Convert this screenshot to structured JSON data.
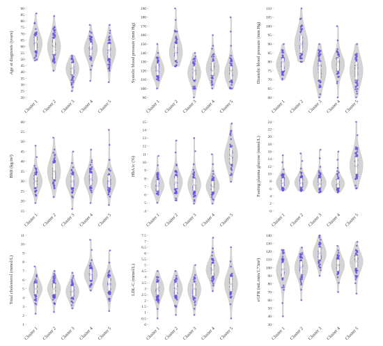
{
  "chart_data": [
    {
      "type": "violin",
      "ylabel": "Age at diagnosis (years)",
      "ylim": [
        20,
        90
      ],
      "yticks": [
        20,
        25,
        30,
        35,
        40,
        45,
        50,
        55,
        60,
        65,
        70,
        75,
        80,
        85,
        90
      ],
      "categories": [
        "Cluster 1",
        "Cluster 2",
        "Cluster 3",
        "Cluster 4",
        "Cluster 5"
      ],
      "series": [
        {
          "median": 63,
          "q1": 57,
          "q3": 68,
          "min": 49,
          "max": 86
        },
        {
          "median": 60,
          "q1": 54,
          "q3": 66,
          "min": 41,
          "max": 84
        },
        {
          "median": 43,
          "q1": 38,
          "q3": 47,
          "min": 25,
          "max": 53
        },
        {
          "median": 58,
          "q1": 53,
          "q3": 63,
          "min": 33,
          "max": 77
        },
        {
          "median": 57,
          "q1": 51,
          "q3": 62,
          "min": 32,
          "max": 77
        }
      ]
    },
    {
      "type": "violin",
      "ylabel": "Systolic blood pressure (mm Hg)",
      "ylim": [
        90,
        190
      ],
      "yticks": [
        90,
        100,
        110,
        120,
        130,
        140,
        150,
        160,
        170,
        180,
        190
      ],
      "categories": [
        "Cluster 1",
        "Cluster 2",
        "Cluster 3",
        "Cluster 4",
        "Cluster 5"
      ],
      "series": [
        {
          "median": 120,
          "q1": 115,
          "q3": 128,
          "min": 100,
          "max": 150
        },
        {
          "median": 140,
          "q1": 132,
          "q3": 150,
          "min": 125,
          "max": 190
        },
        {
          "median": 120,
          "q1": 110,
          "q3": 125,
          "min": 90,
          "max": 140
        },
        {
          "median": 120,
          "q1": 115,
          "q3": 130,
          "min": 100,
          "max": 160
        },
        {
          "median": 120,
          "q1": 110,
          "q3": 125,
          "min": 100,
          "max": 180
        }
      ]
    },
    {
      "type": "violin",
      "ylabel": "Diastolic blood pressure (mm Hg)",
      "ylim": [
        60,
        110
      ],
      "yticks": [
        60,
        65,
        70,
        75,
        80,
        85,
        90,
        95,
        100,
        105,
        110
      ],
      "categories": [
        "Cluster 1",
        "Cluster 2",
        "Cluster 3",
        "Cluster 4",
        "Cluster 5"
      ],
      "series": [
        {
          "median": 80,
          "q1": 75,
          "q3": 82,
          "min": 70,
          "max": 90
        },
        {
          "median": 90,
          "q1": 85,
          "q3": 95,
          "min": 80,
          "max": 110
        },
        {
          "median": 78,
          "q1": 70,
          "q3": 80,
          "min": 60,
          "max": 90
        },
        {
          "median": 80,
          "q1": 75,
          "q3": 82,
          "min": 60,
          "max": 100
        },
        {
          "median": 78,
          "q1": 70,
          "q3": 80,
          "min": 60,
          "max": 90
        }
      ]
    },
    {
      "type": "violin",
      "ylabel": "BMI (kg/m²)",
      "ylim": [
        15,
        60
      ],
      "yticks": [
        15,
        20,
        25,
        30,
        35,
        40,
        45,
        50,
        55,
        60
      ],
      "categories": [
        "Cluster 1",
        "Cluster 2",
        "Cluster 3",
        "Cluster 4",
        "Cluster 5"
      ],
      "series": [
        {
          "median": 30,
          "q1": 27,
          "q3": 33,
          "min": 19,
          "max": 48
        },
        {
          "median": 35,
          "q1": 31,
          "q3": 39,
          "min": 22,
          "max": 52
        },
        {
          "median": 30,
          "q1": 27,
          "q3": 33,
          "min": 16,
          "max": 45
        },
        {
          "median": 31,
          "q1": 28,
          "q3": 34,
          "min": 19,
          "max": 46
        },
        {
          "median": 30,
          "q1": 27,
          "q3": 33,
          "min": 18,
          "max": 56
        }
      ]
    },
    {
      "type": "violin",
      "ylabel": "HbA1c (%)",
      "ylim": [
        4,
        15
      ],
      "yticks": [
        4,
        5,
        6,
        7,
        8,
        9,
        10,
        11,
        12,
        13,
        14,
        15
      ],
      "categories": [
        "Cluster 1",
        "Cluster 2",
        "Cluster 3",
        "Cluster 4",
        "Cluster 5"
      ],
      "series": [
        {
          "median": 7.1,
          "q1": 6.5,
          "q3": 7.8,
          "min": 5.0,
          "max": 10.8
        },
        {
          "median": 7.5,
          "q1": 6.8,
          "q3": 8.3,
          "min": 5.3,
          "max": 12.7
        },
        {
          "median": 7.2,
          "q1": 6.5,
          "q3": 8.0,
          "min": 4.9,
          "max": 13.0
        },
        {
          "median": 7.0,
          "q1": 6.4,
          "q3": 7.7,
          "min": 4.9,
          "max": 11.0
        },
        {
          "median": 10.8,
          "q1": 9.8,
          "q3": 11.8,
          "min": 7.6,
          "max": 14.8
        }
      ]
    },
    {
      "type": "violin",
      "ylabel": "Fasting plasma glucose (mmol/L)",
      "ylim": [
        0,
        24
      ],
      "yticks": [
        0,
        2,
        4,
        6,
        8,
        10,
        12,
        14,
        16,
        18,
        20,
        22,
        24
      ],
      "categories": [
        "Cluster 1",
        "Cluster 2",
        "Cluster 3",
        "Cluster 4",
        "Cluster 5"
      ],
      "series": [
        {
          "median": 7.5,
          "q1": 6.5,
          "q3": 8.8,
          "min": 5.5,
          "max": 15.0
        },
        {
          "median": 7.5,
          "q1": 6.5,
          "q3": 8.8,
          "min": 5.3,
          "max": 15.5
        },
        {
          "median": 7.3,
          "q1": 6.3,
          "q3": 8.8,
          "min": 5.0,
          "max": 16.5
        },
        {
          "median": 7.3,
          "q1": 6.3,
          "q3": 8.5,
          "min": 5.0,
          "max": 16.0
        },
        {
          "median": 12.0,
          "q1": 10.0,
          "q3": 14.5,
          "min": 6.0,
          "max": 24.0
        }
      ]
    },
    {
      "type": "violin",
      "ylabel": "Total cholesterol (mmol/L)",
      "ylim": [
        1,
        11
      ],
      "yticks": [
        1,
        2,
        3,
        4,
        5,
        6,
        7,
        8,
        9,
        10,
        11
      ],
      "categories": [
        "Cluster 1",
        "Cluster 2",
        "Cluster 3",
        "Cluster 4",
        "Cluster 5"
      ],
      "series": [
        {
          "median": 5.0,
          "q1": 4.4,
          "q3": 5.6,
          "min": 2.2,
          "max": 7.5
        },
        {
          "median": 5.0,
          "q1": 4.4,
          "q3": 5.6,
          "min": 2.4,
          "max": 7.0
        },
        {
          "median": 4.7,
          "q1": 4.1,
          "q3": 5.3,
          "min": 2.8,
          "max": 6.8
        },
        {
          "median": 6.6,
          "q1": 6.0,
          "q3": 7.2,
          "min": 4.8,
          "max": 10.5
        },
        {
          "median": 5.5,
          "q1": 4.8,
          "q3": 6.2,
          "min": 2.5,
          "max": 9.3
        }
      ]
    },
    {
      "type": "violin",
      "ylabel": "LDL-C (mmol/L)",
      "ylim": [
        0,
        7.5
      ],
      "yticks": [
        0,
        0.5,
        1,
        1.5,
        2,
        2.5,
        3,
        3.5,
        4,
        4.5,
        5,
        5.5,
        6,
        6.5,
        7,
        7.5
      ],
      "categories": [
        "Cluster 1",
        "Cluster 2",
        "Cluster 3",
        "Cluster 4",
        "Cluster 5"
      ],
      "series": [
        {
          "median": 3.0,
          "q1": 2.5,
          "q3": 3.5,
          "min": 0.5,
          "max": 4.5
        },
        {
          "median": 3.0,
          "q1": 2.5,
          "q3": 3.5,
          "min": 0.8,
          "max": 4.5
        },
        {
          "median": 3.0,
          "q1": 2.4,
          "q3": 3.5,
          "min": 0.8,
          "max": 5.0
        },
        {
          "median": 4.6,
          "q1": 4.1,
          "q3": 5.1,
          "min": 2.8,
          "max": 7.3
        },
        {
          "median": 3.4,
          "q1": 2.8,
          "q3": 4.0,
          "min": 0.5,
          "max": 6.5
        }
      ]
    },
    {
      "type": "violin",
      "ylabel": "eGFR (mL/min/1.73m²)",
      "ylim": [
        30,
        140
      ],
      "yticks": [
        30,
        40,
        50,
        60,
        70,
        80,
        90,
        100,
        110,
        120,
        130,
        140
      ],
      "categories": [
        "Cluster 1",
        "Cluster 2",
        "Cluster 3",
        "Cluster 4",
        "Cluster 5"
      ],
      "series": [
        {
          "median": 98,
          "q1": 88,
          "q3": 106,
          "min": 40,
          "max": 122
        },
        {
          "median": 100,
          "q1": 92,
          "q3": 108,
          "min": 60,
          "max": 125
        },
        {
          "median": 118,
          "q1": 110,
          "q3": 125,
          "min": 90,
          "max": 140
        },
        {
          "median": 103,
          "q1": 96,
          "q3": 110,
          "min": 70,
          "max": 127
        },
        {
          "median": 108,
          "q1": 100,
          "q3": 115,
          "min": 68,
          "max": 132
        }
      ]
    }
  ]
}
